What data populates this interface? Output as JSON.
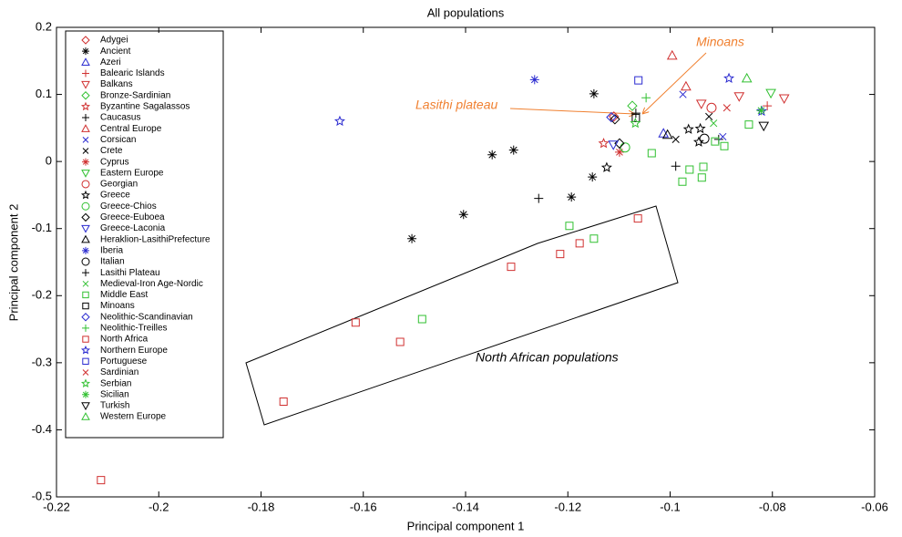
{
  "chart_data": {
    "type": "scatter",
    "title": "All populations",
    "x_label": "Principal component 1",
    "y_label": "Principal component 2",
    "xlim": [
      -0.22,
      -0.06
    ],
    "xticks": [
      -0.22,
      -0.2,
      -0.18,
      -0.16,
      -0.14,
      -0.12,
      -0.1,
      -0.08,
      -0.06
    ],
    "ylim": [
      -0.5,
      0.2
    ],
    "yticks": [
      -0.5,
      -0.4,
      -0.3,
      -0.2,
      -0.1,
      0,
      0.1,
      0.2
    ],
    "legend": "upper-left",
    "annotations": [
      "Minoans",
      "Lasithi plateau",
      "North African populations"
    ],
    "series": [
      {
        "name": "Adygei",
        "color": "#d03030",
        "marker": "diamond",
        "x": [
          -0.111
        ],
        "values": [
          0.067
        ]
      },
      {
        "name": "Ancient",
        "color": "#000000",
        "marker": "asterisk",
        "x": [
          -0.1505,
          -0.1404,
          -0.1348,
          -0.1306,
          -0.1193,
          -0.1152,
          -0.1149
        ],
        "values": [
          -0.115,
          -0.079,
          0.01,
          0.017,
          -0.053,
          -0.023,
          0.101
        ]
      },
      {
        "name": "Azeri",
        "color": "#2a2ad0",
        "marker": "triangle-up",
        "x": [
          -0.1013
        ],
        "values": [
          0.042
        ]
      },
      {
        "name": "Balearic Islands",
        "color": "#d03030",
        "marker": "plus",
        "x": [
          -0.081
        ],
        "values": [
          0.083
        ]
      },
      {
        "name": "Balkans",
        "color": "#d03030",
        "marker": "triangle-down",
        "x": [
          -0.0777,
          -0.0939,
          -0.0865
        ],
        "values": [
          0.094,
          0.086,
          0.097
        ]
      },
      {
        "name": "Bronze-Sardinian",
        "color": "#30c030",
        "marker": "diamond",
        "x": [
          -0.1074
        ],
        "values": [
          0.083
        ]
      },
      {
        "name": "Byzantine Sagalassos",
        "color": "#d03030",
        "marker": "star",
        "x": [
          -0.113
        ],
        "values": [
          0.027
        ]
      },
      {
        "name": "Caucasus",
        "color": "#000000",
        "marker": "plus",
        "x": [
          -0.1257,
          -0.0989,
          -0.0905
        ],
        "values": [
          -0.055,
          -0.007,
          0.033
        ]
      },
      {
        "name": "Central Europe",
        "color": "#d03030",
        "marker": "triangle-up",
        "x": [
          -0.0996,
          -0.0969
        ],
        "values": [
          0.158,
          0.112
        ]
      },
      {
        "name": "Corsican",
        "color": "#2a2ad0",
        "marker": "x",
        "x": [
          -0.0897,
          -0.0975
        ],
        "values": [
          0.037,
          0.1
        ]
      },
      {
        "name": "Crete",
        "color": "#000000",
        "marker": "x",
        "x": [
          -0.0989,
          -0.0924
        ],
        "values": [
          0.033,
          0.067
        ]
      },
      {
        "name": "Cyprus",
        "color": "#d03030",
        "marker": "asterisk",
        "x": [
          -0.1099
        ],
        "values": [
          0.014
        ]
      },
      {
        "name": "Eastern Europe",
        "color": "#30c030",
        "marker": "triangle-down",
        "x": [
          -0.0803
        ],
        "values": [
          0.102
        ]
      },
      {
        "name": "Georgian",
        "color": "#d03030",
        "marker": "circle",
        "x": [
          -0.0919
        ],
        "values": [
          0.08
        ]
      },
      {
        "name": "Greece",
        "color": "#000000",
        "marker": "star",
        "x": [
          -0.1124,
          -0.0964,
          -0.0944,
          -0.0941
        ],
        "values": [
          -0.009,
          0.048,
          0.029,
          0.049
        ]
      },
      {
        "name": "Greece-Chios",
        "color": "#30c030",
        "marker": "circle",
        "x": [
          -0.1088
        ],
        "values": [
          0.021
        ]
      },
      {
        "name": "Greece-Euboea",
        "color": "#000000",
        "marker": "diamond",
        "x": [
          -0.1108,
          -0.1099
        ],
        "values": [
          0.063,
          0.027
        ]
      },
      {
        "name": "Greece-Laconia",
        "color": "#2a2ad0",
        "marker": "triangle-down",
        "x": [
          -0.1111
        ],
        "values": [
          0.025
        ]
      },
      {
        "name": "Heraklion-LasithiPrefecture",
        "color": "#000000",
        "marker": "triangle-up",
        "x": [
          -0.1005
        ],
        "values": [
          0.04
        ]
      },
      {
        "name": "Iberia",
        "color": "#2a2ad0",
        "marker": "asterisk",
        "x": [
          -0.1265
        ],
        "values": [
          0.122
        ]
      },
      {
        "name": "Italian",
        "color": "#000000",
        "marker": "circle",
        "x": [
          -0.0933
        ],
        "values": [
          0.034
        ]
      },
      {
        "name": "Lasithi Plateau",
        "color": "#000000",
        "marker": "plus",
        "x": [
          -0.1067
        ],
        "values": [
          0.072
        ]
      },
      {
        "name": "Medieval-Iron Age-Nordic",
        "color": "#30c030",
        "marker": "x",
        "x": [
          -0.0915
        ],
        "values": [
          0.057
        ]
      },
      {
        "name": "Middle East",
        "color": "#30c030",
        "marker": "square",
        "x": [
          -0.1485,
          -0.1197,
          -0.1149,
          -0.1036,
          -0.0976,
          -0.0962,
          -0.0938,
          -0.0935,
          -0.0912,
          -0.0894,
          -0.0846
        ],
        "values": [
          -0.235,
          -0.096,
          -0.115,
          0.0125,
          -0.03,
          -0.012,
          -0.024,
          -0.008,
          0.03,
          0.023,
          0.055
        ]
      },
      {
        "name": "Minoans",
        "color": "#000000",
        "marker": "square",
        "x": [
          -0.1067
        ],
        "values": [
          0.065
        ]
      },
      {
        "name": "Neolithic-Scandinavian",
        "color": "#2a2ad0",
        "marker": "diamond",
        "x": [
          -0.1115
        ],
        "values": [
          0.066
        ]
      },
      {
        "name": "Neolithic-Treilles",
        "color": "#30c030",
        "marker": "plus",
        "x": [
          -0.1047
        ],
        "values": [
          0.095
        ]
      },
      {
        "name": "North Africa",
        "color": "#d03030",
        "marker": "square",
        "x": [
          -0.2113,
          -0.1756,
          -0.1615,
          -0.1528,
          -0.1311,
          -0.1215,
          -0.1177,
          -0.1063
        ],
        "values": [
          -0.475,
          -0.358,
          -0.24,
          -0.269,
          -0.157,
          -0.138,
          -0.122,
          -0.085
        ]
      },
      {
        "name": "Northern Europe",
        "color": "#2a2ad0",
        "marker": "star",
        "x": [
          -0.1646,
          -0.0885,
          -0.0821
        ],
        "values": [
          0.06,
          0.124,
          0.075
        ]
      },
      {
        "name": "Portuguese",
        "color": "#2a2ad0",
        "marker": "square",
        "x": [
          -0.1062
        ],
        "values": [
          0.121
        ]
      },
      {
        "name": "Sardinian",
        "color": "#d03030",
        "marker": "x",
        "x": [
          -0.0889
        ],
        "values": [
          0.08
        ]
      },
      {
        "name": "Serbian",
        "color": "#30c030",
        "marker": "star",
        "x": [
          -0.1068
        ],
        "values": [
          0.057
        ]
      },
      {
        "name": "Sicilian",
        "color": "#30c030",
        "marker": "asterisk",
        "x": [
          -0.0822
        ],
        "values": [
          0.076
        ]
      },
      {
        "name": "Turkish",
        "color": "#000000",
        "marker": "triangle-down",
        "x": [
          -0.0817
        ],
        "values": [
          0.053
        ]
      },
      {
        "name": "Western Europe",
        "color": "#30c030",
        "marker": "triangle-up",
        "x": [
          -0.085
        ],
        "values": [
          0.124
        ]
      }
    ]
  }
}
